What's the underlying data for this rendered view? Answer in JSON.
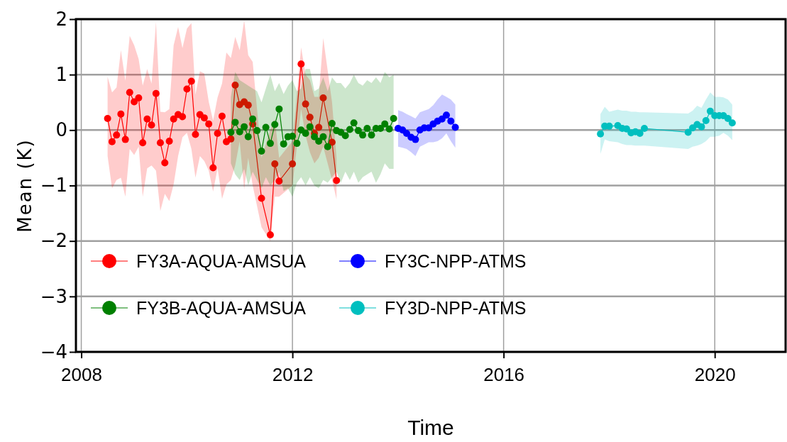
{
  "chart_data": {
    "type": "line",
    "xlabel": "Time",
    "ylabel": "Mean (K)",
    "xlim": [
      "2007-11-25",
      "2021-05-05"
    ],
    "xticks": [
      {
        "value": "2008",
        "label": "2008"
      },
      {
        "value": "2012",
        "label": "2012"
      },
      {
        "value": "2016",
        "label": "2016"
      },
      {
        "value": "2020",
        "label": "2020"
      }
    ],
    "ylim": [
      -4,
      2
    ],
    "yticks": [
      {
        "value": -4,
        "label": "−4"
      },
      {
        "value": -3,
        "label": "−3"
      },
      {
        "value": -2,
        "label": "−2"
      },
      {
        "value": -1,
        "label": "−1"
      },
      0,
      1,
      2
    ],
    "grid": true,
    "legend": "bottom left",
    "marker": "circle",
    "line_style": "solid",
    "series": [
      {
        "name": "FY3A-AQUA-AMSUA",
        "color": "#ff0000",
        "x": [
          "2008-07",
          "2008-08",
          "2008-09",
          "2008-10",
          "2008-11",
          "2008-12",
          "2009-01",
          "2009-02",
          "2009-03",
          "2009-04",
          "2009-05",
          "2009-06",
          "2009-07",
          "2009-08",
          "2009-09",
          "2009-10",
          "2009-11",
          "2009-12",
          "2010-01",
          "2010-02",
          "2010-03",
          "2010-04",
          "2010-05",
          "2010-06",
          "2010-07",
          "2010-08",
          "2010-09",
          "2010-10",
          "2010-11",
          "2010-12",
          "2011-01",
          "2011-02",
          "2011-03",
          "2011-04",
          "2011-06",
          "2011-08",
          "2011-09",
          "2011-10",
          "2012-01",
          "2012-03",
          "2012-04",
          "2012-05",
          "2012-06",
          "2012-07",
          "2012-08",
          "2012-10",
          "2012-11"
        ],
        "values": [
          0.21,
          -0.21,
          -0.09,
          0.29,
          -0.17,
          0.68,
          0.51,
          0.58,
          -0.23,
          0.2,
          0.09,
          0.66,
          -0.23,
          -0.59,
          -0.2,
          0.2,
          0.28,
          0.24,
          0.74,
          0.88,
          -0.08,
          0.28,
          0.22,
          0.11,
          -0.68,
          -0.06,
          0.25,
          -0.21,
          -0.16,
          0.81,
          0.46,
          0.51,
          0.45,
          0.11,
          -1.23,
          -1.89,
          -0.61,
          -0.92,
          -0.61,
          1.19,
          0.47,
          0.23,
          -0.06,
          0.05,
          0.58,
          -0.22,
          -0.91
        ],
        "upper": [
          0.96,
          0.68,
          0.77,
          1.44,
          0.89,
          1.7,
          1.53,
          1.28,
          0.8,
          1.1,
          0.84,
          1.95,
          0.33,
          0.32,
          0.38,
          1.53,
          1.86,
          1.48,
          1.83,
          1.93,
          0.64,
          1.06,
          1.02,
          0.51,
          0.17,
          0.59,
          0.84,
          1.4,
          1.3,
          1.68,
          1.44,
          1.98,
          1.35,
          1.23,
          -0.5,
          0.0,
          0.2,
          -0.5,
          -0.2,
          1.49,
          1.0,
          0.9,
          0.6,
          0.6,
          1.66,
          0.5,
          -0.5
        ],
        "lower": [
          -0.47,
          -1.05,
          -0.9,
          -0.86,
          -1.2,
          -0.34,
          -0.45,
          -0.3,
          -1.2,
          -0.69,
          -0.64,
          -0.73,
          -1.46,
          -1.15,
          -1.28,
          -0.98,
          -0.47,
          -0.13,
          -0.05,
          -0.34,
          -0.86,
          -0.47,
          -0.56,
          -0.73,
          -1.11,
          -0.69,
          -1.24,
          -0.98,
          -0.9,
          -0.64,
          -0.2,
          -1.07,
          -0.5,
          -1.0,
          -1.75,
          -2.0,
          -1.2,
          -1.2,
          -1.0,
          0.38,
          -0.1,
          -0.4,
          -0.6,
          -0.5,
          -0.3,
          -0.9,
          -1.25
        ]
      },
      {
        "name": "FY3B-AQUA-AMSUA",
        "color": "#008000",
        "x": [
          "2010-11",
          "2010-12",
          "2011-01",
          "2011-02",
          "2011-03",
          "2011-04",
          "2011-05",
          "2011-06",
          "2011-07",
          "2011-08",
          "2011-09",
          "2011-10",
          "2011-11",
          "2011-12",
          "2012-01",
          "2012-02",
          "2012-03",
          "2012-04",
          "2012-05",
          "2012-06",
          "2012-07",
          "2012-08",
          "2012-09",
          "2012-10",
          "2012-11",
          "2012-12",
          "2013-01",
          "2013-02",
          "2013-03",
          "2013-04",
          "2013-05",
          "2013-06",
          "2013-07",
          "2013-08",
          "2013-09",
          "2013-10",
          "2013-11",
          "2013-12"
        ],
        "values": [
          -0.04,
          0.14,
          -0.03,
          0.06,
          -0.12,
          0.2,
          -0.01,
          -0.38,
          0.05,
          -0.24,
          0.1,
          0.38,
          -0.25,
          -0.12,
          -0.11,
          -0.24,
          0.0,
          -0.06,
          0.06,
          -0.12,
          -0.2,
          -0.12,
          -0.3,
          0.12,
          -0.01,
          -0.04,
          -0.1,
          0.01,
          0.13,
          -0.01,
          -0.09,
          0.03,
          -0.09,
          0.03,
          0.03,
          0.11,
          0.02,
          0.21
        ],
        "upper": [
          0.6,
          1.05,
          0.9,
          0.85,
          0.8,
          0.75,
          0.7,
          0.5,
          0.75,
          1.0,
          0.7,
          0.85,
          0.65,
          0.8,
          0.9,
          0.7,
          0.75,
          1.1,
          1.1,
          0.7,
          0.75,
          0.95,
          0.7,
          0.95,
          0.85,
          0.85,
          0.75,
          0.85,
          1.0,
          0.85,
          0.8,
          0.9,
          0.85,
          0.95,
          0.85,
          1.05,
          0.95,
          1.0
        ],
        "lower": [
          -0.6,
          -0.8,
          -0.9,
          -0.7,
          -1.0,
          -0.75,
          -0.9,
          -1.05,
          -0.85,
          -1.0,
          -0.9,
          -0.75,
          -1.1,
          -1.05,
          -1.2,
          -0.95,
          -0.85,
          -1.0,
          -0.85,
          -1.0,
          -1.05,
          -0.9,
          -0.95,
          -0.85,
          -0.75,
          -0.95,
          -0.75,
          -0.9,
          -0.75,
          -0.95,
          -0.85,
          -0.8,
          -0.75,
          -0.95,
          -0.8,
          -0.6,
          -0.7,
          -0.7
        ]
      },
      {
        "name": "FY3C-NPP-ATMS",
        "color": "#0000ff",
        "x": [
          "2014-01",
          "2014-02",
          "2014-03",
          "2014-04",
          "2014-05",
          "2014-06",
          "2014-07",
          "2014-08",
          "2014-09",
          "2014-10",
          "2014-11",
          "2014-12",
          "2015-01",
          "2015-02"
        ],
        "values": [
          0.03,
          0.0,
          -0.06,
          -0.13,
          -0.17,
          0.0,
          0.04,
          0.04,
          0.11,
          0.16,
          0.2,
          0.27,
          0.16,
          0.05
        ],
        "upper": [
          0.36,
          0.33,
          0.29,
          0.25,
          0.21,
          0.32,
          0.35,
          0.38,
          0.45,
          0.55,
          0.64,
          0.6,
          0.55,
          0.46
        ],
        "lower": [
          -0.3,
          -0.32,
          -0.34,
          -0.4,
          -0.47,
          -0.3,
          -0.26,
          -0.22,
          -0.22,
          -0.2,
          -0.15,
          -0.06,
          -0.2,
          -0.32
        ]
      },
      {
        "name": "FY3D-NPP-ATMS",
        "color": "#00bfbf",
        "x": [
          "2017-11",
          "2017-12",
          "2018-01",
          "2018-03",
          "2018-04",
          "2018-05",
          "2018-06",
          "2018-07",
          "2018-08",
          "2018-09",
          "2019-07",
          "2019-08",
          "2019-09",
          "2019-10",
          "2019-11",
          "2019-12",
          "2020-01",
          "2020-02",
          "2020-03",
          "2020-04",
          "2020-05"
        ],
        "values": [
          -0.07,
          0.07,
          0.07,
          0.08,
          0.03,
          0.02,
          -0.05,
          -0.03,
          -0.06,
          0.03,
          -0.04,
          0.04,
          0.1,
          0.06,
          0.17,
          0.34,
          0.26,
          0.26,
          0.26,
          0.21,
          0.13
        ],
        "upper": [
          0.29,
          0.42,
          0.33,
          0.37,
          0.35,
          0.35,
          0.33,
          0.33,
          0.32,
          0.32,
          0.3,
          0.35,
          0.44,
          0.4,
          0.55,
          0.68,
          0.6,
          0.6,
          0.59,
          0.55,
          0.46
        ],
        "lower": [
          -0.43,
          -0.17,
          -0.2,
          -0.22,
          -0.25,
          -0.27,
          -0.27,
          -0.28,
          -0.28,
          -0.28,
          -0.34,
          -0.3,
          -0.28,
          -0.25,
          -0.2,
          -0.12,
          -0.12,
          -0.1,
          -0.05,
          -0.1,
          -0.18
        ]
      }
    ]
  }
}
